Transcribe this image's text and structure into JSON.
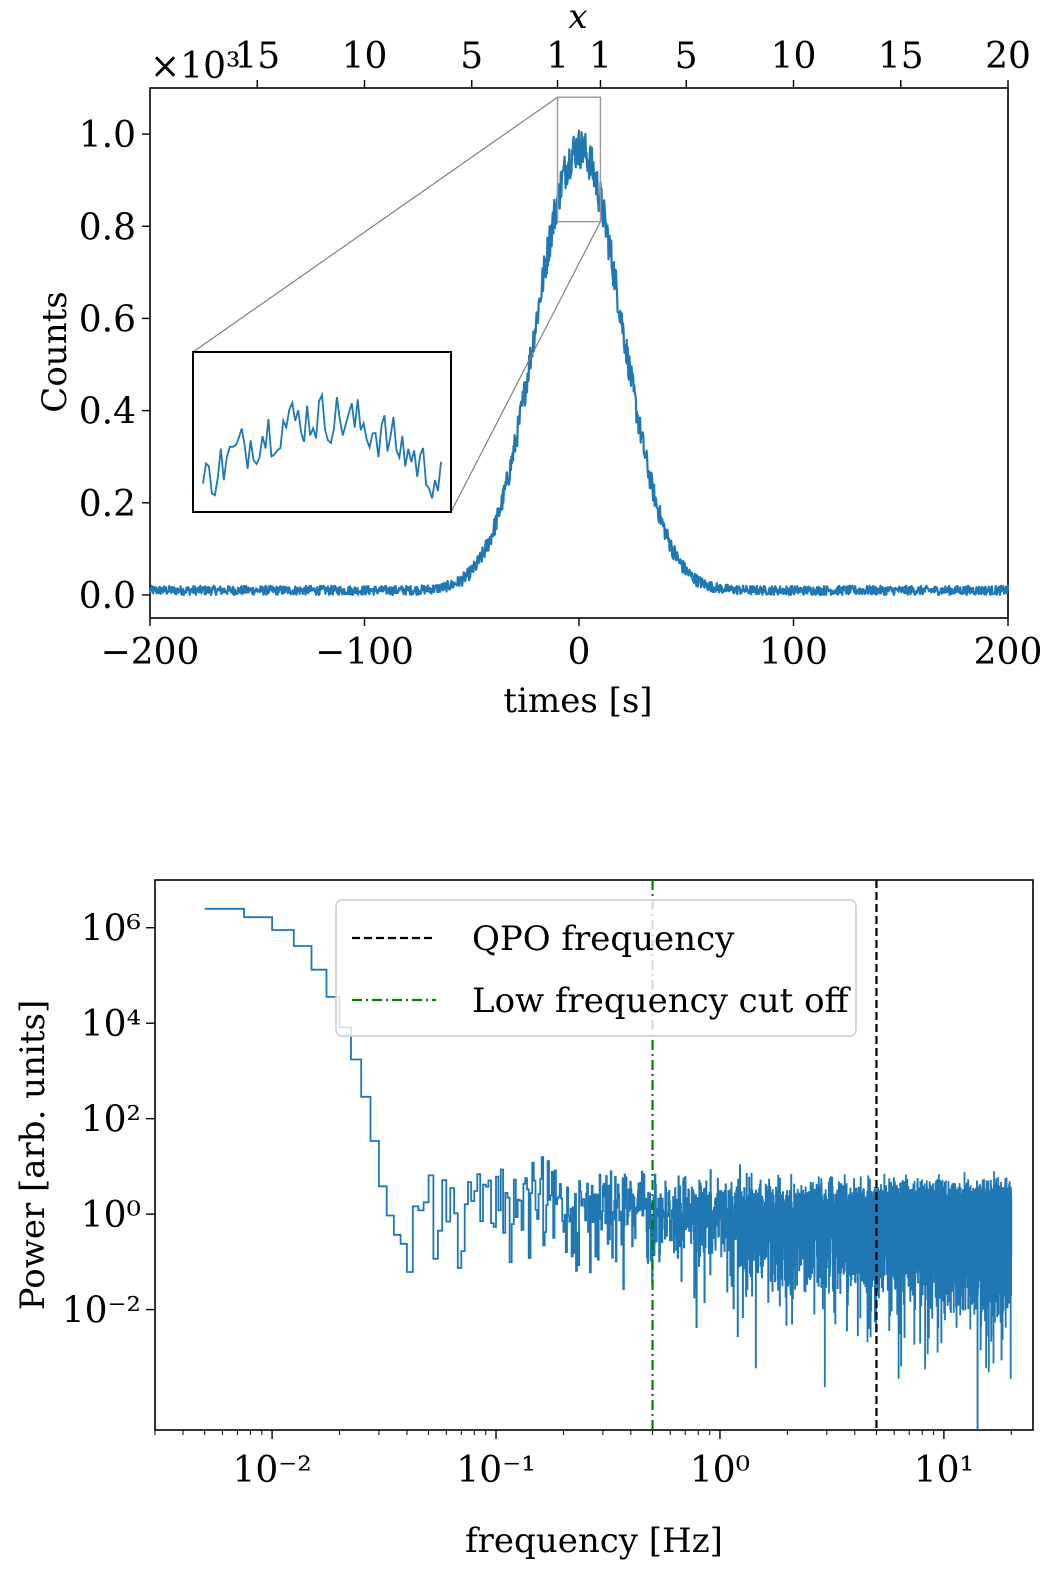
{
  "chart_data": [
    {
      "type": "line",
      "title": "",
      "xlabel": "times [s]",
      "ylabel": "Counts",
      "y_multiplier": "×10³",
      "xlim": [
        -200,
        200
      ],
      "ylim": [
        -0.05,
        1.1
      ],
      "x_ticks": [
        -200,
        -100,
        0,
        100,
        200
      ],
      "x_tick_labels": [
        "−200",
        "−100",
        "0",
        "100",
        "200"
      ],
      "y_ticks": [
        0.0,
        0.2,
        0.4,
        0.6,
        0.8,
        1.0
      ],
      "y_tick_labels": [
        "0.0",
        "0.2",
        "0.4",
        "0.6",
        "0.8",
        "1.0"
      ],
      "top_axis": {
        "label": "x",
        "ticks": [
          -150,
          -100,
          -50,
          -10,
          10,
          50,
          100,
          150,
          200
        ],
        "tick_labels": [
          "15",
          "10",
          "5",
          "1",
          "1",
          "5",
          "10",
          "15",
          "20"
        ]
      },
      "series": [
        {
          "color": "#1f77b4",
          "baseline": 0.01,
          "peak": 0.97,
          "center_s": 0,
          "sigma_s": 20,
          "noise": 0.04,
          "sample_x": [
            -200,
            -100,
            -60,
            -40,
            -20,
            0,
            20,
            40,
            60,
            100,
            200
          ],
          "sample_y": [
            0.01,
            0.01,
            0.02,
            0.15,
            0.62,
            0.97,
            0.62,
            0.15,
            0.02,
            0.01,
            0.01
          ]
        }
      ],
      "inset": {
        "xlim": [
          -10,
          10
        ],
        "ylim": [
          0.81,
          1.08
        ]
      },
      "grid": false,
      "legend": "none"
    },
    {
      "type": "line",
      "title": "",
      "xlabel": "frequency [Hz]",
      "ylabel": "Power [arb. units]",
      "xscale": "log",
      "yscale": "log",
      "xlim": [
        0.003,
        25
      ],
      "ylim": [
        3e-05,
        10000000
      ],
      "x_ticks": [
        0.01,
        0.1,
        1,
        10
      ],
      "x_tick_labels": [
        "10⁻²",
        "10⁻¹",
        "10⁰",
        "10¹"
      ],
      "y_ticks": [
        0.01,
        1,
        100,
        10000,
        1000000
      ],
      "y_tick_labels": [
        "10⁻²",
        "10⁰",
        "10²",
        "10⁴",
        "10⁶"
      ],
      "series": [
        {
          "color": "#1f77b4",
          "step": true,
          "sample_x": [
            0.005,
            0.0075,
            0.01,
            0.0125,
            0.015,
            0.0175,
            0.02,
            0.0225,
            0.025,
            0.0275,
            0.03,
            0.0325,
            0.035,
            0.04,
            0.05,
            0.1,
            0.5,
            1,
            5,
            20
          ],
          "sample_y": [
            2500000,
            1700000,
            900000,
            400000,
            130000,
            35000,
            8000,
            1700,
            300,
            35,
            4,
            0.9,
            0.35,
            0.9,
            1.2,
            2.0,
            1.2,
            0.9,
            0.7,
            0.6
          ]
        },
        {
          "name": "QPO frequency",
          "color": "#000000",
          "style": "dashed",
          "vline": 5
        },
        {
          "name": "Low frequency cut off",
          "color": "#008000",
          "style": "dashdot",
          "vline": 0.5
        }
      ],
      "legend": "top-center",
      "grid": false
    }
  ]
}
